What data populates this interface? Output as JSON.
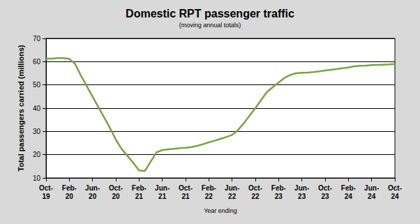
{
  "chart_data": {
    "type": "line",
    "title": "Domestic RPT passenger traffic",
    "subtitle": "(moving annual totals)",
    "x_label": "Year ending",
    "y_label": "Total passengers carried (millions)",
    "categories": [
      "Oct-19",
      null,
      null,
      null,
      "Feb-20",
      null,
      null,
      null,
      "Jun-20",
      null,
      null,
      null,
      "Oct-20",
      null,
      null,
      null,
      "Feb-21",
      null,
      null,
      null,
      "Jun-21",
      null,
      null,
      null,
      "Oct-21",
      null,
      null,
      null,
      "Feb-22",
      null,
      null,
      null,
      "Jun-22",
      null,
      null,
      null,
      "Oct-22",
      null,
      null,
      null,
      "Feb-23",
      null,
      null,
      null,
      "Jun-23",
      null,
      null,
      null,
      "Oct-23",
      null,
      null,
      null,
      "Feb-24",
      null,
      null,
      null,
      "Jun-24",
      null,
      null,
      null,
      "Oct-24"
    ],
    "values": [
      61.3,
      61.3,
      61.5,
      61.5,
      61.2,
      59,
      54,
      49.5,
      45,
      40.5,
      36,
      31.5,
      26.5,
      22.5,
      19.5,
      16.5,
      13.2,
      13,
      17,
      21,
      22,
      22.3,
      22.5,
      22.8,
      23,
      23.3,
      23.8,
      24.5,
      25.3,
      26,
      26.8,
      27.6,
      28.5,
      30.5,
      33.5,
      36.8,
      40,
      43.5,
      47,
      49,
      51,
      53,
      54.3,
      55,
      55.2,
      55.3,
      55.5,
      55.8,
      56.2,
      56.5,
      56.8,
      57.2,
      57.5,
      58,
      58.2,
      58.3,
      58.5,
      58.6,
      58.7,
      58.8,
      59
    ],
    "color": "#77a346",
    "ylim": [
      10,
      70
    ],
    "yticks": [
      10,
      20,
      30,
      40,
      50,
      60,
      70
    ],
    "grid": true
  }
}
